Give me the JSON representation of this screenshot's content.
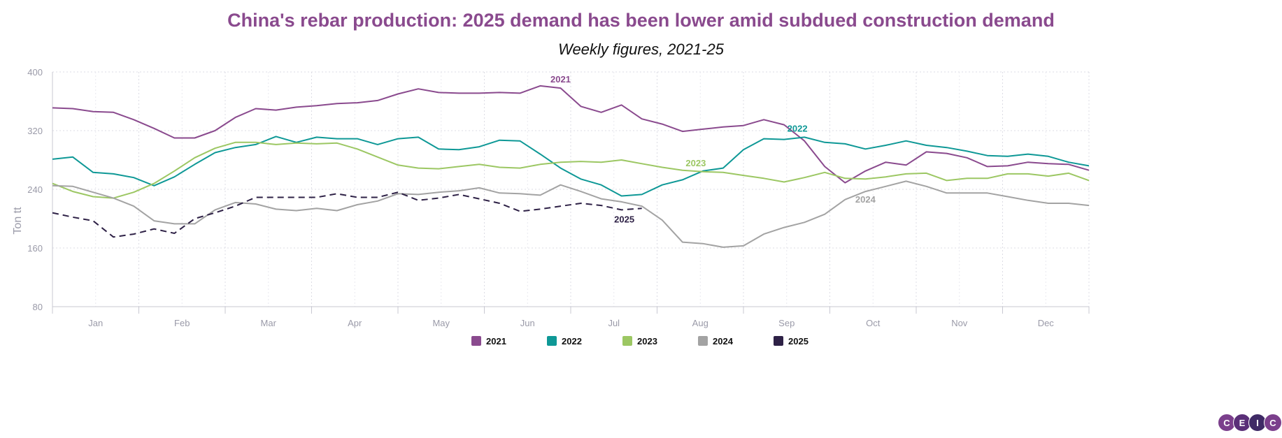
{
  "chart_data": {
    "type": "line",
    "title": "China's rebar production: 2025 demand has been lower amid subdued construction demand",
    "subtitle": "Weekly figures, 2021-25",
    "ylabel": "Ton tt",
    "xlabel": "",
    "ylim": [
      80,
      400
    ],
    "yticks": [
      80,
      160,
      240,
      320,
      400
    ],
    "xlim": [
      1,
      52
    ],
    "months": [
      "Jan",
      "Feb",
      "Mar",
      "Apr",
      "May",
      "Jun",
      "Jul",
      "Aug",
      "Sep",
      "Oct",
      "Nov",
      "Dec"
    ],
    "grid": true,
    "legend_position": "bottom",
    "series": [
      {
        "name": "2021",
        "label": "2021",
        "color": "#8a4a8e",
        "dash": false,
        "values": [
          351,
          350,
          346,
          345,
          335,
          323,
          310,
          310,
          320,
          338,
          350,
          348,
          352,
          354,
          357,
          358,
          361,
          370,
          377,
          372,
          371,
          371,
          372,
          371,
          381,
          378,
          353,
          345,
          355,
          336,
          329,
          319,
          322,
          325,
          327,
          335,
          328,
          306,
          271,
          249,
          265,
          277,
          273,
          291,
          289,
          283,
          271,
          272,
          277,
          275,
          274,
          266
        ]
      },
      {
        "name": "2022",
        "label": "2022",
        "color": "#0e9896",
        "dash": false,
        "values": [
          281,
          284,
          263,
          261,
          256,
          245,
          257,
          274,
          290,
          297,
          301,
          312,
          304,
          311,
          309,
          309,
          301,
          309,
          311,
          295,
          294,
          298,
          307,
          306,
          288,
          269,
          254,
          246,
          231,
          233,
          246,
          253,
          265,
          269,
          294,
          309,
          308,
          311,
          304,
          302,
          295,
          300,
          306,
          300,
          297,
          292,
          286,
          285,
          288,
          285,
          277,
          272
        ]
      },
      {
        "name": "2023",
        "label": "2023",
        "color": "#9cc763",
        "dash": false,
        "values": [
          248,
          237,
          230,
          228,
          236,
          248,
          265,
          283,
          296,
          304,
          304,
          301,
          303,
          302,
          303,
          295,
          284,
          273,
          269,
          268,
          271,
          274,
          270,
          269,
          274,
          277,
          278,
          277,
          280,
          275,
          270,
          266,
          264,
          263,
          259,
          255,
          250,
          256,
          263,
          255,
          254,
          257,
          261,
          262,
          252,
          255,
          255,
          261,
          261,
          258,
          262,
          252
        ]
      },
      {
        "name": "2024",
        "label": "2024",
        "color": "#a3a3a3",
        "dash": false,
        "values": [
          245,
          244,
          236,
          228,
          217,
          197,
          193,
          193,
          212,
          222,
          220,
          213,
          211,
          214,
          211,
          219,
          224,
          234,
          233,
          236,
          238,
          242,
          235,
          234,
          232,
          246,
          237,
          227,
          223,
          217,
          198,
          168,
          166,
          161,
          163,
          179,
          188,
          195,
          206,
          226,
          237,
          244,
          251,
          244,
          235,
          235,
          235,
          230,
          225,
          221,
          221,
          218
        ]
      },
      {
        "name": "2025",
        "label": "2025",
        "color": "#2e2146",
        "dash": true,
        "values": [
          208,
          202,
          197,
          175,
          179,
          186,
          180,
          200,
          208,
          217,
          229,
          229,
          229,
          229,
          234,
          229,
          229,
          236,
          225,
          228,
          233,
          227,
          221,
          210,
          213,
          217,
          221,
          218,
          212,
          214
        ]
      }
    ],
    "annotations": [
      {
        "text": "2021",
        "series": "2021",
        "week": 26
      },
      {
        "text": "2022",
        "series": "2022",
        "week": 38
      },
      {
        "text": "2023",
        "series": "2023",
        "week": 33
      },
      {
        "text": "2024",
        "series": "2024",
        "week": 41
      },
      {
        "text": "2025",
        "series": "2025",
        "week": 29
      }
    ]
  },
  "branding": {
    "logo_letters": [
      "C",
      "E",
      "I",
      "C"
    ]
  }
}
